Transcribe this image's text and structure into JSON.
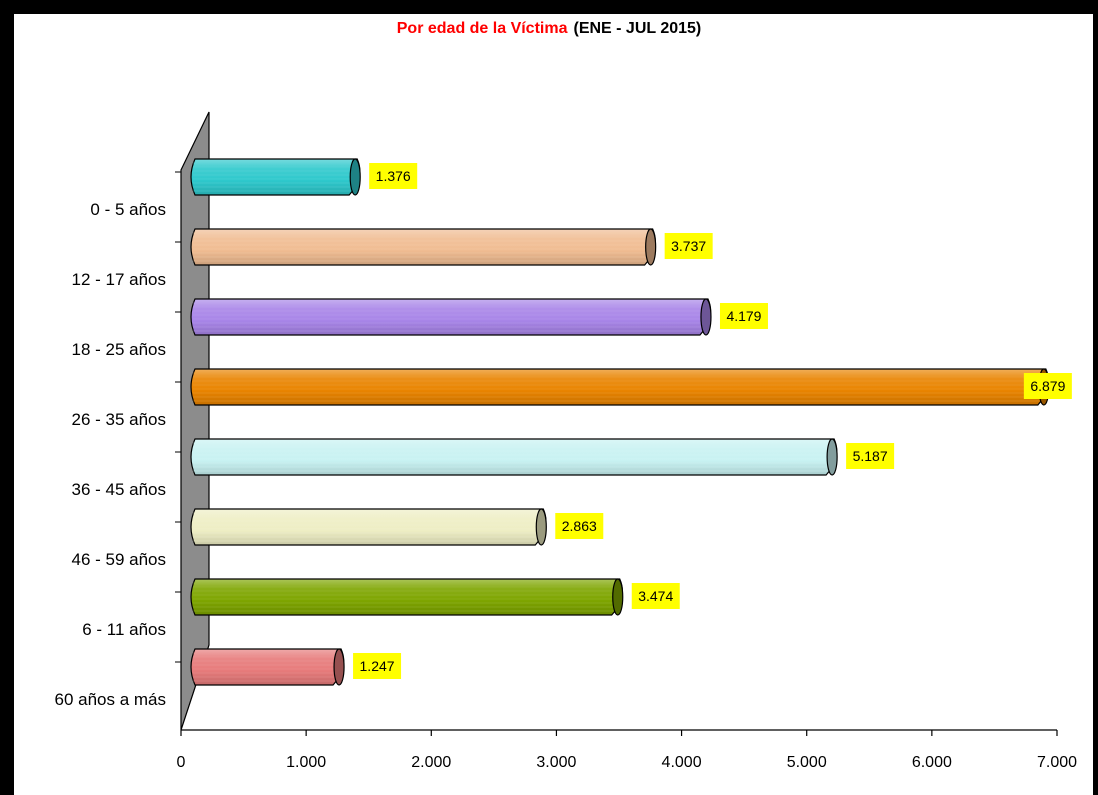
{
  "chart_data": {
    "type": "bar",
    "orientation": "horizontal",
    "title": "Por edad de la Víctima",
    "subtitle": "(ENE - JUL 2015)",
    "categories": [
      "0 - 5 años",
      "12 - 17 años",
      "18 - 25 años",
      "26 - 35 años",
      "36 - 45 años",
      "46 - 59 años",
      "6 - 11 años",
      "60 años a más"
    ],
    "values": [
      1376,
      3737,
      4179,
      6879,
      5187,
      2863,
      3474,
      1247
    ],
    "value_labels": [
      "1.376",
      "3.737",
      "4.179",
      "6.879",
      "5.187",
      "2.863",
      "3.474",
      "1.247"
    ],
    "colors": [
      "#2ec8cc",
      "#f0bc92",
      "#a885e8",
      "#e98400",
      "#c8f2f2",
      "#eeeec4",
      "#7ea500",
      "#e77b7b"
    ],
    "xlim": [
      0,
      7000
    ],
    "xticks": [
      "0",
      "1.000",
      "2.000",
      "3.000",
      "4.000",
      "5.000",
      "6.000",
      "7.000"
    ],
    "xlabel": "",
    "ylabel": "",
    "grid": false,
    "label_background": "#ffff00",
    "wall_color": "#8c8c8c"
  }
}
